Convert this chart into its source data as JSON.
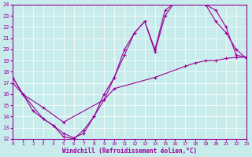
{
  "xlabel": "Windchill (Refroidissement éolien,°C)",
  "bg_color": "#c8ecec",
  "line_color": "#990099",
  "grid_color": "#ffffff",
  "xlim": [
    0,
    23
  ],
  "ylim": [
    12,
    24
  ],
  "xticks": [
    0,
    1,
    2,
    3,
    4,
    5,
    6,
    7,
    8,
    9,
    10,
    11,
    12,
    13,
    14,
    15,
    16,
    17,
    18,
    19,
    20,
    21,
    22,
    23
  ],
  "yticks": [
    12,
    13,
    14,
    15,
    16,
    17,
    18,
    19,
    20,
    21,
    22,
    23,
    24
  ],
  "curve1_x": [
    0,
    1,
    3,
    4,
    5,
    6,
    7,
    8,
    9,
    10,
    11,
    12,
    13,
    14,
    15,
    16,
    17,
    18,
    19,
    20,
    21,
    22,
    23
  ],
  "curve1_y": [
    17.5,
    16.0,
    13.8,
    13.2,
    12.2,
    12.0,
    12.8,
    14.0,
    16.0,
    17.5,
    19.5,
    21.5,
    22.5,
    20.0,
    23.5,
    24.2,
    24.3,
    24.2,
    24.0,
    22.5,
    21.5,
    20.0,
    19.2
  ],
  "curve2_x": [
    0,
    1,
    2,
    3,
    4,
    5,
    6,
    7,
    8,
    9,
    10,
    11,
    12,
    13,
    14,
    15,
    16,
    17,
    18,
    19,
    20,
    21,
    22,
    23
  ],
  "curve2_y": [
    17.5,
    16.0,
    14.5,
    13.8,
    13.2,
    12.5,
    12.1,
    12.5,
    14.0,
    15.5,
    17.5,
    20.0,
    21.5,
    22.5,
    19.8,
    23.0,
    24.3,
    24.4,
    24.2,
    24.0,
    23.5,
    22.0,
    19.5,
    19.3
  ],
  "curve3_x": [
    0,
    1,
    3,
    5,
    9,
    10,
    14,
    17,
    18,
    19,
    20,
    21,
    22,
    23
  ],
  "curve3_y": [
    17.0,
    16.0,
    14.8,
    13.5,
    15.5,
    16.5,
    17.5,
    18.5,
    18.8,
    19.0,
    19.0,
    19.2,
    19.3,
    19.3
  ]
}
